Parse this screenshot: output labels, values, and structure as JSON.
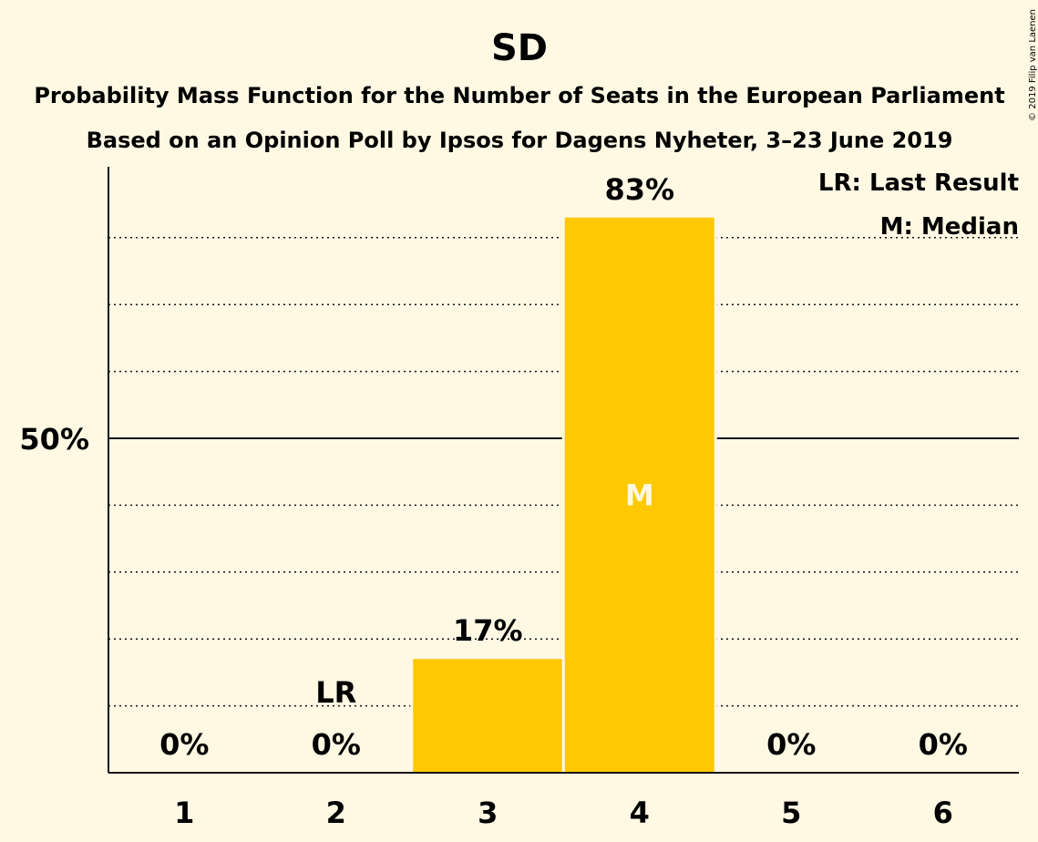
{
  "chart_data": {
    "type": "bar",
    "title": "SD",
    "subtitle_1": "Probability Mass Function for the Number of Seats in the European Parliament",
    "subtitle_2": "Based on an Opinion Poll by Ipsos for Dagens Nyheter, 3–23 June 2019",
    "copyright": "© 2019 Filip van Laenen",
    "categories": [
      "1",
      "2",
      "3",
      "4",
      "5",
      "6"
    ],
    "values": [
      0,
      0,
      17,
      83,
      0,
      0
    ],
    "value_labels": [
      "0%",
      "0%",
      "17%",
      "83%",
      "0%",
      "0%"
    ],
    "y_tick_label": "50%",
    "y_tick_value": 50,
    "ylim": [
      0,
      90
    ],
    "gridlines": [
      10,
      20,
      30,
      40,
      60,
      70,
      80
    ],
    "last_result": {
      "category": "2",
      "marker": "LR"
    },
    "median": {
      "category": "4",
      "marker": "M"
    },
    "legend": {
      "position": "top-right",
      "items": [
        "LR: Last Result",
        "M: Median"
      ]
    },
    "colors": {
      "background": "#fff9e4",
      "bar": "#ffc800",
      "text": "#111111"
    }
  }
}
